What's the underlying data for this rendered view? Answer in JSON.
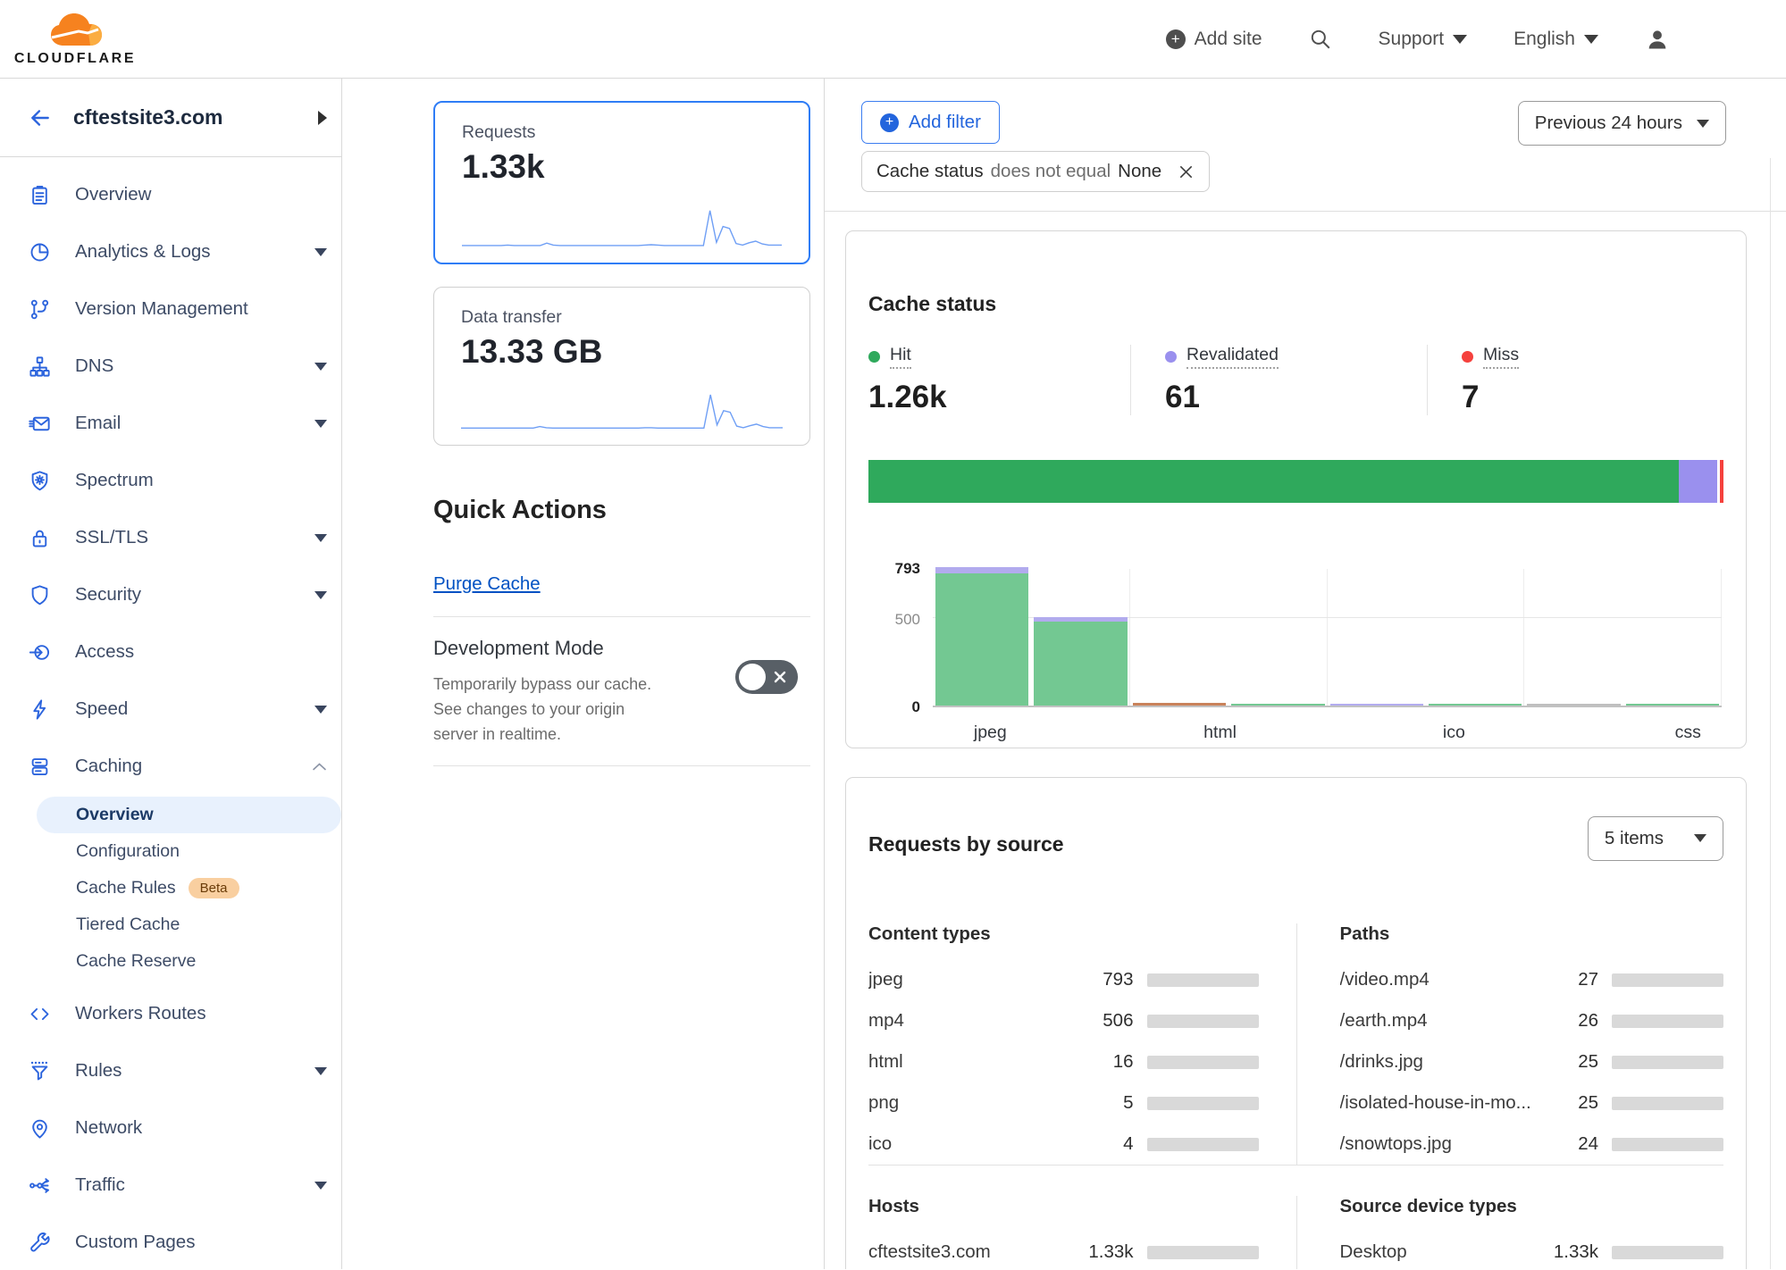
{
  "palette": {
    "accent_blue": "#0051c3",
    "button_blue": "#2365dd",
    "icon_blue": "#2c64dd",
    "sparkline_blue": "#6f9ff5",
    "hit_green": "#2fa95c",
    "revalidated_purple": "#9a90ee",
    "miss_red": "#f5413d",
    "minibar_blue": "#1172e8",
    "brand_orange": "#f6821f",
    "brand_orange_light": "#fbad41",
    "beta_badge_bg": "#f9cfa0"
  },
  "header": {
    "logo_text": "CLOUDFLARE",
    "add_site_label": "Add site",
    "support_label": "Support",
    "language_label": "English"
  },
  "sidebar": {
    "site_name": "cftestsite3.com",
    "items": [
      {
        "label": "Overview",
        "icon": "overview",
        "chevron": false
      },
      {
        "label": "Analytics & Logs",
        "icon": "analytics",
        "chevron": true
      },
      {
        "label": "Version Management",
        "icon": "version-management",
        "chevron": false
      },
      {
        "label": "DNS",
        "icon": "dns",
        "chevron": true
      },
      {
        "label": "Email",
        "icon": "email",
        "chevron": true
      },
      {
        "label": "Spectrum",
        "icon": "spectrum",
        "chevron": false
      },
      {
        "label": "SSL/TLS",
        "icon": "ssl-tls",
        "chevron": true
      },
      {
        "label": "Security",
        "icon": "security",
        "chevron": true
      },
      {
        "label": "Access",
        "icon": "access",
        "chevron": false
      },
      {
        "label": "Speed",
        "icon": "speed",
        "chevron": true
      },
      {
        "label": "Caching",
        "icon": "caching",
        "chevron": "expanded",
        "submenu": [
          {
            "label": "Overview",
            "active": true
          },
          {
            "label": "Configuration"
          },
          {
            "label": "Cache Rules",
            "badge": "Beta"
          },
          {
            "label": "Tiered Cache"
          },
          {
            "label": "Cache Reserve"
          }
        ]
      },
      {
        "label": "Workers Routes",
        "icon": "workers-routes",
        "chevron": false
      },
      {
        "label": "Rules",
        "icon": "rules",
        "chevron": true
      },
      {
        "label": "Network",
        "icon": "network",
        "chevron": false
      },
      {
        "label": "Traffic",
        "icon": "traffic",
        "chevron": true
      },
      {
        "label": "Custom Pages",
        "icon": "custom-pages",
        "chevron": false
      }
    ]
  },
  "quick_actions": {
    "title": "Quick Actions",
    "purge_label": "Purge Cache",
    "dev_mode_title": "Development Mode",
    "dev_mode_description": "Temporarily bypass our cache. See changes to your origin server in realtime.",
    "dev_mode_enabled": false
  },
  "filter_bar": {
    "add_filter_label": "Add filter",
    "chip": {
      "field": "Cache status",
      "operator": "does not equal",
      "value": "None"
    },
    "time_range_label": "Previous 24 hours"
  },
  "cache_status": {
    "title": "Cache status",
    "stats": [
      {
        "label": "Hit",
        "value": "1.26k",
        "color": "#2fa95c"
      },
      {
        "label": "Revalidated",
        "value": "61",
        "color": "#9a90ee"
      },
      {
        "label": "Miss",
        "value": "7",
        "color": "#f5413d"
      }
    ]
  },
  "requests_by_source": {
    "title": "Requests by source",
    "items_dropdown_label": "5 items",
    "groups": [
      {
        "heading": "Content types",
        "rows": [
          {
            "label": "jpeg",
            "value": "793",
            "fill": 0.6
          },
          {
            "label": "mp4",
            "value": "506",
            "fill": 0.39
          },
          {
            "label": "html",
            "value": "16",
            "fill": 0.015
          },
          {
            "label": "png",
            "value": "5",
            "fill": 0.009
          },
          {
            "label": "ico",
            "value": "4",
            "fill": 0.008
          }
        ]
      },
      {
        "heading": "Paths",
        "rows": [
          {
            "label": "/video.mp4",
            "value": "27",
            "fill": 0.022
          },
          {
            "label": "/earth.mp4",
            "value": "26",
            "fill": 0.021
          },
          {
            "label": "/drinks.jpg",
            "value": "25",
            "fill": 0.02
          },
          {
            "label": "/isolated-house-in-mo...",
            "value": "25",
            "fill": 0.02
          },
          {
            "label": "/snowtops.jpg",
            "value": "24",
            "fill": 0.019
          }
        ]
      },
      {
        "heading": "Hosts",
        "rows": [
          {
            "label": "cftestsite3.com",
            "value": "1.33k",
            "fill": 0.6
          }
        ]
      },
      {
        "heading": "Source device types",
        "rows": [
          {
            "label": "Desktop",
            "value": "1.33k",
            "fill": 0.6
          }
        ]
      }
    ]
  },
  "chart_data": [
    {
      "type": "line",
      "name": "requests-over-time",
      "title": "Requests",
      "value": "1.33k",
      "selected": true,
      "x_range": "Previous 24 hours",
      "grid": false,
      "legend": "none",
      "points_pct": [
        7,
        7,
        7,
        7,
        7,
        7,
        7,
        8,
        7,
        7,
        7,
        7,
        7,
        13,
        8,
        7,
        7,
        7,
        7,
        7,
        7,
        7,
        7,
        7,
        7,
        7,
        7,
        7,
        8,
        9,
        8,
        7,
        7,
        7,
        7,
        7,
        7,
        7,
        95,
        15,
        55,
        50,
        12,
        8,
        14,
        18,
        11,
        8,
        8,
        8
      ]
    },
    {
      "type": "line",
      "name": "data-transfer-over-time",
      "title": "Data transfer",
      "value": "13.33 GB",
      "selected": false,
      "x_range": "Previous 24 hours",
      "grid": false,
      "legend": "none",
      "points_pct": [
        6,
        6,
        6,
        6,
        6,
        6,
        6,
        6,
        6,
        6,
        6,
        6,
        10,
        7,
        6,
        6,
        6,
        6,
        6,
        6,
        6,
        6,
        6,
        6,
        6,
        6,
        6,
        6,
        7,
        7,
        6,
        6,
        6,
        6,
        6,
        6,
        6,
        6,
        90,
        14,
        50,
        46,
        11,
        7,
        12,
        16,
        10,
        7,
        7,
        7
      ]
    },
    {
      "type": "stacked-bar",
      "name": "cache-status-share",
      "total": 1328,
      "segments": [
        {
          "label": "Hit",
          "value": 1260,
          "color": "#2fa95c"
        },
        {
          "label": "Revalidated",
          "value": 61,
          "color": "#9a90ee"
        },
        {
          "label": "Miss",
          "value": 7,
          "color": "#f5413d"
        }
      ]
    },
    {
      "type": "bar",
      "name": "cache-status-by-content-type",
      "title": "Cache status",
      "ylabel": "",
      "xlabel": "",
      "ylim": [
        0,
        793
      ],
      "yticks": [
        793,
        500,
        0
      ],
      "grid": true,
      "x_tick_labels": [
        "jpeg",
        "html",
        "ico",
        "css"
      ],
      "x_tick_positions_pct": [
        7,
        35,
        63.5,
        92
      ],
      "segment_colors": {
        "hit": "#73c892",
        "revalidated": "#b2abee",
        "expired": "#c9825a",
        "other": "#bfbfbf"
      },
      "bars": [
        {
          "label": "jpeg",
          "total": 793,
          "segments": [
            {
              "status": "hit",
              "value": 758
            },
            {
              "status": "revalidated",
              "value": 35
            }
          ]
        },
        {
          "label": "mp4",
          "total": 506,
          "segments": [
            {
              "status": "hit",
              "value": 480
            },
            {
              "status": "revalidated",
              "value": 26
            }
          ]
        },
        {
          "label": "html",
          "total": 16,
          "segments": [
            {
              "status": "expired",
              "value": 16
            }
          ]
        },
        {
          "label": "png",
          "total": 5,
          "segments": [
            {
              "status": "hit",
              "value": 5
            }
          ]
        },
        {
          "label": "ico",
          "total": 4,
          "segments": [
            {
              "status": "revalidated",
              "value": 4
            }
          ]
        },
        {
          "label": "",
          "total": 2,
          "segments": [
            {
              "status": "hit",
              "value": 2
            }
          ]
        },
        {
          "label": "css",
          "total": 1,
          "segments": [
            {
              "status": "other",
              "value": 1
            }
          ]
        },
        {
          "label": "",
          "total": 1,
          "segments": [
            {
              "status": "hit",
              "value": 1
            }
          ]
        }
      ]
    }
  ]
}
